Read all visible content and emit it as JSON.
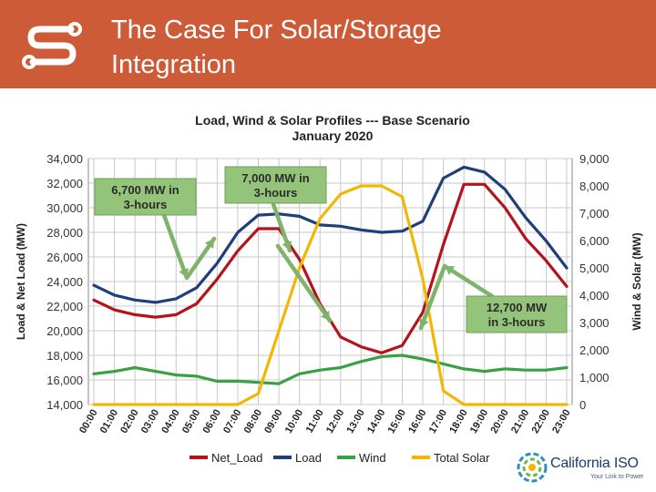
{
  "slide": {
    "title_line1": "The Case For Solar/Storage",
    "title_line2": "Integration",
    "accent_color": "#cd5b38"
  },
  "logo": {
    "icon": "stylized-s-icon"
  },
  "footer": {
    "org_name": "California ISO",
    "tagline": "Your Link to Power"
  },
  "chart_data": {
    "type": "line",
    "title": "Load, Wind & Solar Profiles --- Base Scenario",
    "subtitle": "January 2020",
    "ylabel_left": "Load & Net Load (MW)",
    "ylabel_right": "Wind & Solar (MW)",
    "ylim_left": [
      14000,
      34000
    ],
    "ylim_right": [
      0,
      9000
    ],
    "left_ticks": [
      "34,000",
      "32,000",
      "30,000",
      "28,000",
      "26,000",
      "24,000",
      "22,000",
      "20,000",
      "18,000",
      "16,000",
      "14,000"
    ],
    "right_ticks": [
      "9,000",
      "8,000",
      "7,000",
      "6,000",
      "5,000",
      "4,000",
      "3,000",
      "2,000",
      "1,000",
      "0"
    ],
    "categories": [
      "00:00",
      "01:00",
      "02:00",
      "03:00",
      "04:00",
      "05:00",
      "06:00",
      "07:00",
      "08:00",
      "09:00",
      "10:00",
      "11:00",
      "12:00",
      "13:00",
      "14:00",
      "15:00",
      "16:00",
      "17:00",
      "18:00",
      "19:00",
      "20:00",
      "21:00",
      "22:00",
      "23:00"
    ],
    "grid": true,
    "legend_position": "bottom",
    "series": [
      {
        "name": "Net_Load",
        "axis": "left",
        "color": "#b5121b",
        "values": [
          22500,
          21700,
          21300,
          21100,
          21300,
          22200,
          24200,
          26500,
          28300,
          28300,
          25800,
          22200,
          19500,
          18700,
          18200,
          18800,
          21500,
          27000,
          31900,
          31900,
          30000,
          27500,
          25700,
          23600
        ]
      },
      {
        "name": "Load",
        "axis": "left",
        "color": "#1f3f7a",
        "values": [
          23700,
          22900,
          22500,
          22300,
          22600,
          23500,
          25500,
          28000,
          29400,
          29500,
          29300,
          28600,
          28500,
          28200,
          28000,
          28100,
          28900,
          32400,
          33300,
          32900,
          31500,
          29200,
          27300,
          25100
        ]
      },
      {
        "name": "Wind",
        "axis": "left",
        "color": "#3aa046",
        "values": [
          16500,
          16700,
          17000,
          16700,
          16400,
          16300,
          15900,
          15900,
          15800,
          15700,
          16500,
          16800,
          17000,
          17500,
          17900,
          18000,
          17700,
          17300,
          16900,
          16700,
          16900,
          16800,
          16800,
          17000
        ]
      },
      {
        "name": "Total Solar",
        "axis": "right",
        "color": "#f2b705",
        "values": [
          0,
          0,
          0,
          0,
          0,
          0,
          0,
          0,
          400,
          2700,
          5000,
          6800,
          7700,
          8000,
          8000,
          7600,
          4600,
          500,
          0,
          0,
          0,
          0,
          0,
          0
        ]
      }
    ],
    "annotations": [
      {
        "line1": "6,700 MW in",
        "line2": "3-hours"
      },
      {
        "line1": "7,000 MW in",
        "line2": "3-hours"
      },
      {
        "line1": "12,700 MW",
        "line2": "in 3-hours"
      }
    ]
  }
}
